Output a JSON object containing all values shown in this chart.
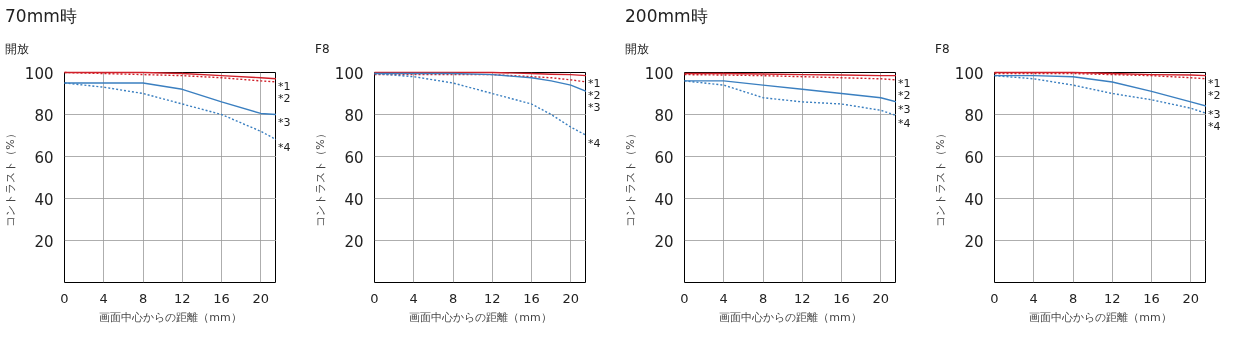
{
  "chart_data": [
    {
      "type": "line",
      "title": "70mm時",
      "subtitle": "開放",
      "xlabel": "画面中心からの距離（mm）",
      "ylabel": "コントラスト（%）",
      "xlim": [
        0,
        21.6
      ],
      "ylim": [
        0,
        100
      ],
      "xticks": [
        0,
        4,
        8,
        12,
        16,
        20
      ],
      "yticks": [
        20,
        40,
        60,
        80,
        100
      ],
      "grid": true,
      "marker": "none",
      "x": [
        0,
        4,
        8,
        12,
        16,
        20,
        21.6
      ],
      "series": [
        {
          "name": "*1",
          "color": "#d0202a",
          "line_style": "solid",
          "values": [
            100,
            100,
            100,
            99.5,
            98.5,
            97.5,
            97
          ]
        },
        {
          "name": "*2",
          "color": "#d0202a",
          "line_style": "dotted",
          "values": [
            100,
            99.5,
            99,
            98.5,
            97.5,
            96,
            95.5
          ]
        },
        {
          "name": "*3",
          "color": "#3a7fc0",
          "line_style": "solid",
          "values": [
            95,
            95,
            95,
            92,
            86,
            80.5,
            80
          ]
        },
        {
          "name": "*4",
          "color": "#3a7fc0",
          "line_style": "dotted",
          "values": [
            95,
            93,
            90,
            85,
            80,
            72,
            68
          ]
        }
      ]
    },
    {
      "type": "line",
      "title": "F8",
      "xlabel": "画面中心からの距離（mm）",
      "ylabel": "コントラスト（%）",
      "xlim": [
        0,
        21.6
      ],
      "ylim": [
        0,
        100
      ],
      "xticks": [
        0,
        4,
        8,
        12,
        16,
        20
      ],
      "yticks": [
        20,
        40,
        60,
        80,
        100
      ],
      "grid": true,
      "marker": "none",
      "x": [
        0,
        4,
        8,
        12,
        16,
        18,
        20,
        21.6
      ],
      "series": [
        {
          "name": "*1",
          "color": "#d0202a",
          "line_style": "solid",
          "values": [
            100,
            100,
            100,
            100,
            99.5,
            99.2,
            99,
            98.5
          ]
        },
        {
          "name": "*2",
          "color": "#d0202a",
          "line_style": "dotted",
          "values": [
            99,
            99,
            99,
            99,
            98,
            97.5,
            96.5,
            95.5
          ]
        },
        {
          "name": "*3",
          "color": "#3a7fc0",
          "line_style": "solid",
          "values": [
            99.5,
            99.5,
            99.5,
            99,
            97.5,
            96,
            94,
            91
          ]
        },
        {
          "name": "*4",
          "color": "#3a7fc0",
          "line_style": "dotted",
          "values": [
            99.5,
            98,
            95,
            90,
            85,
            80,
            74,
            70
          ]
        }
      ]
    },
    {
      "type": "line",
      "title": "200mm時",
      "subtitle": "開放",
      "xlabel": "画面中心からの距離（mm）",
      "ylabel": "コントラスト（%）",
      "xlim": [
        0,
        21.6
      ],
      "ylim": [
        0,
        100
      ],
      "xticks": [
        0,
        4,
        8,
        12,
        16,
        20
      ],
      "yticks": [
        20,
        40,
        60,
        80,
        100
      ],
      "grid": true,
      "marker": "none",
      "x": [
        0,
        4,
        8,
        12,
        16,
        20,
        21.6
      ],
      "series": [
        {
          "name": "*1",
          "color": "#d0202a",
          "line_style": "solid",
          "values": [
            99.5,
            99.5,
            99.3,
            99,
            98.8,
            98.5,
            98.5
          ]
        },
        {
          "name": "*2",
          "color": "#d0202a",
          "line_style": "dotted",
          "values": [
            99,
            98.8,
            98.5,
            98,
            97.5,
            97,
            96.5
          ]
        },
        {
          "name": "*3",
          "color": "#3a7fc0",
          "line_style": "solid",
          "values": [
            96,
            96,
            94,
            92,
            90,
            88,
            86
          ]
        },
        {
          "name": "*4",
          "color": "#3a7fc0",
          "line_style": "dotted",
          "values": [
            96,
            94,
            88,
            86,
            85,
            82,
            79.5
          ]
        }
      ]
    },
    {
      "type": "line",
      "title": "F8",
      "xlabel": "画面中心からの距離（mm）",
      "ylabel": "コントラスト（%）",
      "xlim": [
        0,
        21.6
      ],
      "ylim": [
        0,
        100
      ],
      "xticks": [
        0,
        4,
        8,
        12,
        16,
        20
      ],
      "yticks": [
        20,
        40,
        60,
        80,
        100
      ],
      "grid": true,
      "marker": "none",
      "x": [
        0,
        4,
        8,
        12,
        16,
        20,
        21.6
      ],
      "series": [
        {
          "name": "*1",
          "color": "#d0202a",
          "line_style": "solid",
          "values": [
            100,
            100,
            100,
            99.5,
            99,
            98.8,
            98.5
          ]
        },
        {
          "name": "*2",
          "color": "#d0202a",
          "line_style": "dotted",
          "values": [
            99.5,
            99.5,
            99.5,
            99,
            98.5,
            97.5,
            97
          ]
        },
        {
          "name": "*3",
          "color": "#3a7fc0",
          "line_style": "solid",
          "values": [
            98.5,
            98.5,
            98,
            95.5,
            91,
            86,
            84
          ]
        },
        {
          "name": "*4",
          "color": "#3a7fc0",
          "line_style": "dotted",
          "values": [
            98.5,
            97,
            94,
            90,
            87,
            83,
            80.5
          ]
        }
      ]
    }
  ]
}
